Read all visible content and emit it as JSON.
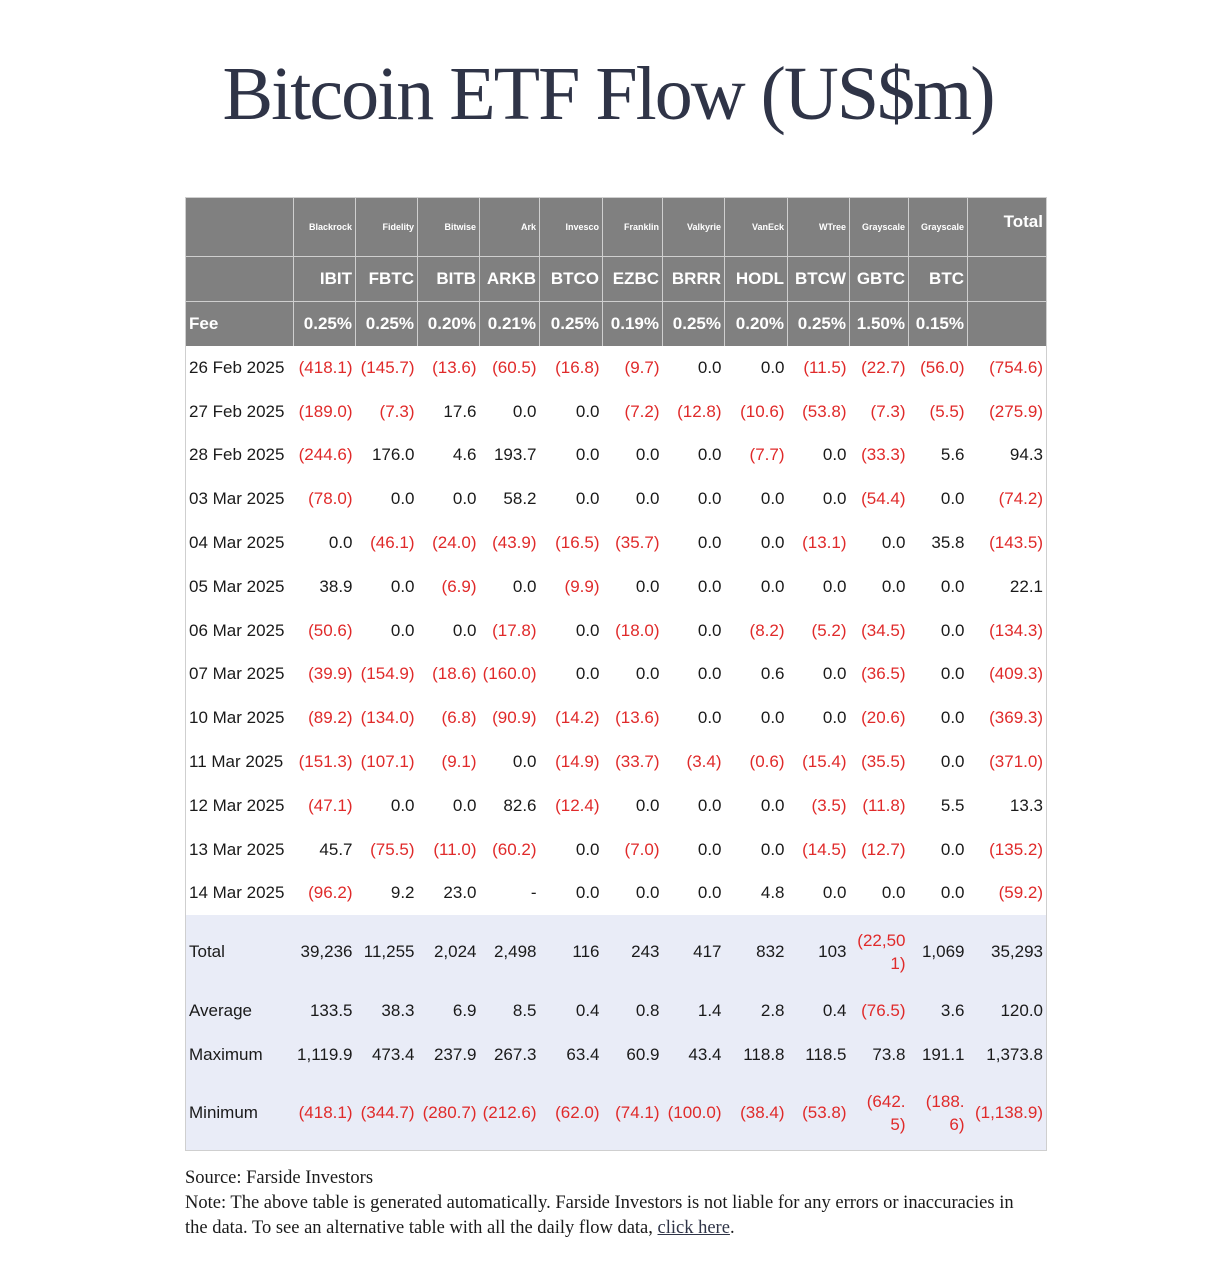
{
  "title": "Bitcoin ETF Flow (US$m)",
  "table": {
    "issuers": [
      "",
      "Blackrock",
      "Fidelity",
      "Bitwise",
      "Ark",
      "Invesco",
      "Franklin",
      "Valkyrie",
      "VanEck",
      "WTree",
      "Grayscale",
      "Grayscale",
      "Total"
    ],
    "tickers": [
      "",
      "IBIT",
      "FBTC",
      "BITB",
      "ARKB",
      "BTCO",
      "EZBC",
      "BRRR",
      "HODL",
      "BTCW",
      "GBTC",
      "BTC",
      ""
    ],
    "fees": [
      "Fee",
      "0.25%",
      "0.25%",
      "0.20%",
      "0.21%",
      "0.25%",
      "0.19%",
      "0.25%",
      "0.20%",
      "0.25%",
      "1.50%",
      "0.15%",
      ""
    ],
    "rows": [
      [
        "26 Feb 2025",
        "(418.1)",
        "(145.7)",
        "(13.6)",
        "(60.5)",
        "(16.8)",
        "(9.7)",
        "0.0",
        "0.0",
        "(11.5)",
        "(22.7)",
        "(56.0)",
        "(754.6)"
      ],
      [
        "27 Feb 2025",
        "(189.0)",
        "(7.3)",
        "17.6",
        "0.0",
        "0.0",
        "(7.2)",
        "(12.8)",
        "(10.6)",
        "(53.8)",
        "(7.3)",
        "(5.5)",
        "(275.9)"
      ],
      [
        "28 Feb 2025",
        "(244.6)",
        "176.0",
        "4.6",
        "193.7",
        "0.0",
        "0.0",
        "0.0",
        "(7.7)",
        "0.0",
        "(33.3)",
        "5.6",
        "94.3"
      ],
      [
        "03 Mar 2025",
        "(78.0)",
        "0.0",
        "0.0",
        "58.2",
        "0.0",
        "0.0",
        "0.0",
        "0.0",
        "0.0",
        "(54.4)",
        "0.0",
        "(74.2)"
      ],
      [
        "04 Mar 2025",
        "0.0",
        "(46.1)",
        "(24.0)",
        "(43.9)",
        "(16.5)",
        "(35.7)",
        "0.0",
        "0.0",
        "(13.1)",
        "0.0",
        "35.8",
        "(143.5)"
      ],
      [
        "05 Mar 2025",
        "38.9",
        "0.0",
        "(6.9)",
        "0.0",
        "(9.9)",
        "0.0",
        "0.0",
        "0.0",
        "0.0",
        "0.0",
        "0.0",
        "22.1"
      ],
      [
        "06 Mar 2025",
        "(50.6)",
        "0.0",
        "0.0",
        "(17.8)",
        "0.0",
        "(18.0)",
        "0.0",
        "(8.2)",
        "(5.2)",
        "(34.5)",
        "0.0",
        "(134.3)"
      ],
      [
        "07 Mar 2025",
        "(39.9)",
        "(154.9)",
        "(18.6)",
        "(160.0)",
        "0.0",
        "0.0",
        "0.0",
        "0.6",
        "0.0",
        "(36.5)",
        "0.0",
        "(409.3)"
      ],
      [
        "10 Mar 2025",
        "(89.2)",
        "(134.0)",
        "(6.8)",
        "(90.9)",
        "(14.2)",
        "(13.6)",
        "0.0",
        "0.0",
        "0.0",
        "(20.6)",
        "0.0",
        "(369.3)"
      ],
      [
        "11 Mar 2025",
        "(151.3)",
        "(107.1)",
        "(9.1)",
        "0.0",
        "(14.9)",
        "(33.7)",
        "(3.4)",
        "(0.6)",
        "(15.4)",
        "(35.5)",
        "0.0",
        "(371.0)"
      ],
      [
        "12 Mar 2025",
        "(47.1)",
        "0.0",
        "0.0",
        "82.6",
        "(12.4)",
        "0.0",
        "0.0",
        "0.0",
        "(3.5)",
        "(11.8)",
        "5.5",
        "13.3"
      ],
      [
        "13 Mar 2025",
        "45.7",
        "(75.5)",
        "(11.0)",
        "(60.2)",
        "0.0",
        "(7.0)",
        "0.0",
        "0.0",
        "(14.5)",
        "(12.7)",
        "0.0",
        "(135.2)"
      ],
      [
        "14 Mar 2025",
        "(96.2)",
        "9.2",
        "23.0",
        "-",
        "0.0",
        "0.0",
        "0.0",
        "4.8",
        "0.0",
        "0.0",
        "0.0",
        "(59.2)"
      ]
    ],
    "summary": [
      [
        "Total",
        "39,236",
        "11,255",
        "2,024",
        "2,498",
        "116",
        "243",
        "417",
        "832",
        "103",
        "(22,501)",
        "1,069",
        "35,293"
      ],
      [
        "Average",
        "133.5",
        "38.3",
        "6.9",
        "8.5",
        "0.4",
        "0.8",
        "1.4",
        "2.8",
        "0.4",
        "(76.5)",
        "3.6",
        "120.0"
      ],
      [
        "Maximum",
        "1,119.9",
        "473.4",
        "237.9",
        "267.3",
        "63.4",
        "60.9",
        "43.4",
        "118.8",
        "118.5",
        "73.8",
        "191.1",
        "1,373.8"
      ],
      [
        "Minimum",
        "(418.1)",
        "(344.7)",
        "(280.7)",
        "(212.6)",
        "(62.0)",
        "(74.1)",
        "(100.0)",
        "(38.4)",
        "(53.8)",
        "(642.5)",
        "(188.6)",
        "(1,138.9)"
      ]
    ]
  },
  "footer": {
    "source": "Source: Farside Investors",
    "note": "Note: The above table is generated automatically. Farside Investors is not liable for any errors or inaccuracies in the data. To see an alternative table with all the daily flow data, ",
    "link": "click here",
    "end": "."
  },
  "colors": {
    "header_bg": "#808080",
    "negative": "#e02a2a",
    "summary_bg": "#e9ecf7",
    "title": "#2f3447"
  }
}
